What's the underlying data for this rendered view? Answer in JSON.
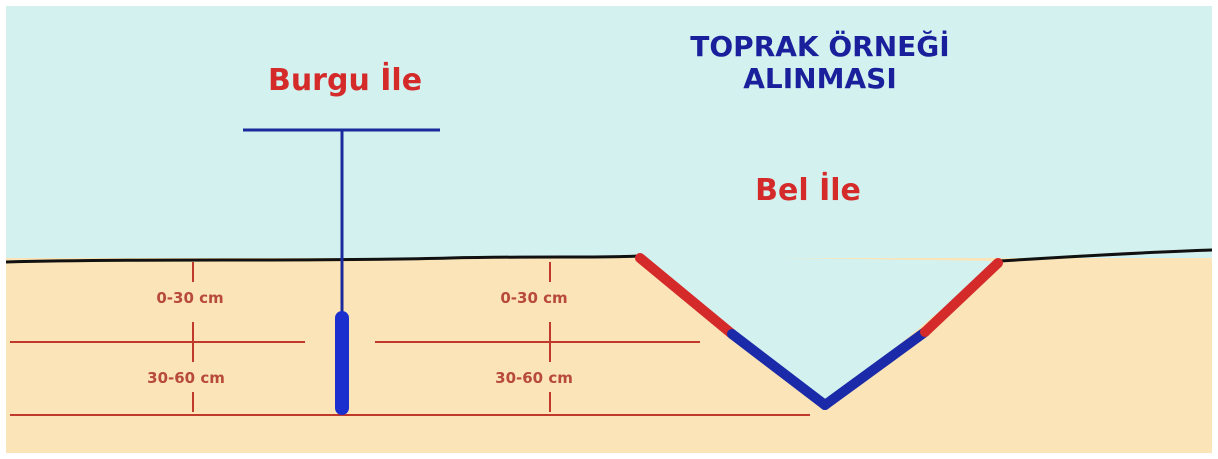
{
  "title": {
    "lines": [
      "TOPRAK ÖRNEĞİ",
      "ALINMASI"
    ]
  },
  "methods": [
    {
      "label": "Burgu İle",
      "layers": [
        "0-30 cm",
        "30-60 cm"
      ]
    },
    {
      "label": "Bel İle",
      "layers": [
        "0-30 cm",
        "30-60 cm"
      ]
    }
  ]
}
